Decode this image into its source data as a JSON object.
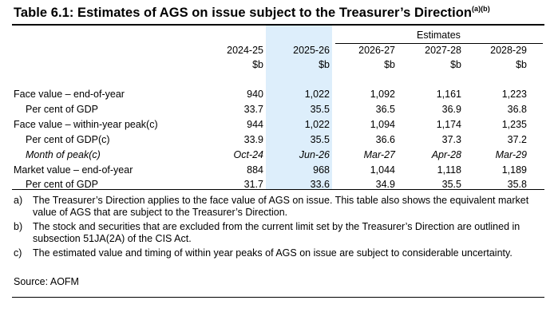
{
  "title": {
    "main": "Table 6.1: Estimates of AGS on issue subject to the Treasurer’s Direction",
    "superscript": "(a)(b)"
  },
  "header": {
    "estimates_label": "Estimates",
    "years": [
      "2024-25",
      "2025-26",
      "2026-27",
      "2027-28",
      "2028-29"
    ],
    "units": [
      "$b",
      "$b",
      "$b",
      "$b",
      "$b"
    ]
  },
  "rows": [
    {
      "label": "Face value – end-of-year",
      "values": [
        "940",
        "1,022",
        "1,092",
        "1,161",
        "1,223"
      ]
    },
    {
      "label": "Per cent of GDP",
      "values": [
        "33.7",
        "35.5",
        "36.5",
        "36.9",
        "36.8"
      ]
    },
    {
      "label": "Face value – within-year peak(c)",
      "values": [
        "944",
        "1,022",
        "1,094",
        "1,174",
        "1,235"
      ]
    },
    {
      "label": "Per cent of GDP(c)",
      "values": [
        "33.9",
        "35.5",
        "36.6",
        "37.3",
        "37.2"
      ]
    },
    {
      "label": "Month of peak(c)",
      "values": [
        "Oct-24",
        "Jun-26",
        "Mar-27",
        "Apr-28",
        "Mar-29"
      ]
    },
    {
      "label": "Market value – end-of-year",
      "values": [
        "884",
        "968",
        "1,044",
        "1,118",
        "1,189"
      ]
    },
    {
      "label": "Per cent of GDP",
      "values": [
        "31.7",
        "33.6",
        "34.9",
        "35.5",
        "35.8"
      ]
    }
  ],
  "notes": [
    {
      "key": "a)",
      "text": "The Treasurer’s Direction applies to the face value of AGS on issue. This table also shows the equivalent market value of AGS that are subject to the Treasurer’s Direction."
    },
    {
      "key": "b)",
      "text": "The stock and securities that are excluded from the current limit set by the Treasurer’s Direction are outlined in subsection 51JA(2A) of the CIS Act."
    },
    {
      "key": "c)",
      "text": "The estimated value and timing of within year peaks of AGS on issue are subject to considerable uncertainty."
    }
  ],
  "source": "Source:   AOFM",
  "colors": {
    "highlight_column": "#ddeefb",
    "text": "#000000"
  }
}
